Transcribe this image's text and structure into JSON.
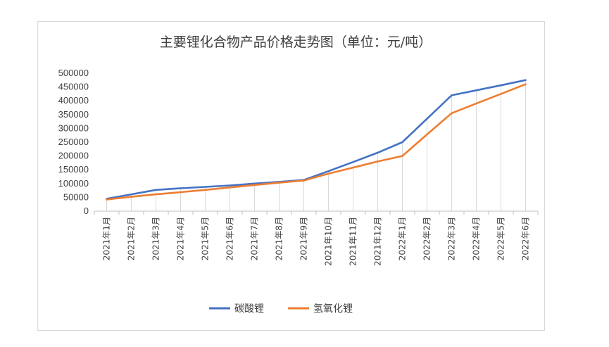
{
  "chart_data": {
    "type": "line",
    "title": "主要锂化合物产品价格走势图（单位：元/吨）",
    "xlabel": "",
    "ylabel": "",
    "categories": [
      "2021年1月",
      "2021年2月",
      "2021年3月",
      "2021年4月",
      "2021年5月",
      "2021年6月",
      "2021年7月",
      "2021年8月",
      "2021年9月",
      "2021年10月",
      "2021年11月",
      "2021年12月",
      "2022年1月",
      "2022年2月",
      "2022年3月",
      "2022年4月",
      "2022年5月",
      "2022年6月"
    ],
    "ylim": [
      0,
      500000
    ],
    "yticks": [
      "500000",
      "450000",
      "400000",
      "350000",
      "300000",
      "250000",
      "200000",
      "150000",
      "100000",
      "50000",
      "0"
    ],
    "grid": "vertical",
    "legend": "bottom",
    "series": [
      {
        "name": "碳酸锂",
        "color": "#4472c4",
        "values": [
          45000,
          61000,
          77000,
          83000,
          88000,
          93000,
          100000,
          106000,
          113000,
          145000,
          178000,
          212000,
          250000,
          335000,
          420000,
          438000,
          456000,
          475000
        ]
      },
      {
        "name": "氢氧化锂",
        "color": "#ed7d31",
        "values": [
          42000,
          52000,
          61000,
          69000,
          77000,
          86000,
          95000,
          103000,
          111000,
          136000,
          158000,
          180000,
          200000,
          278000,
          355000,
          390000,
          425000,
          460000
        ]
      }
    ]
  }
}
